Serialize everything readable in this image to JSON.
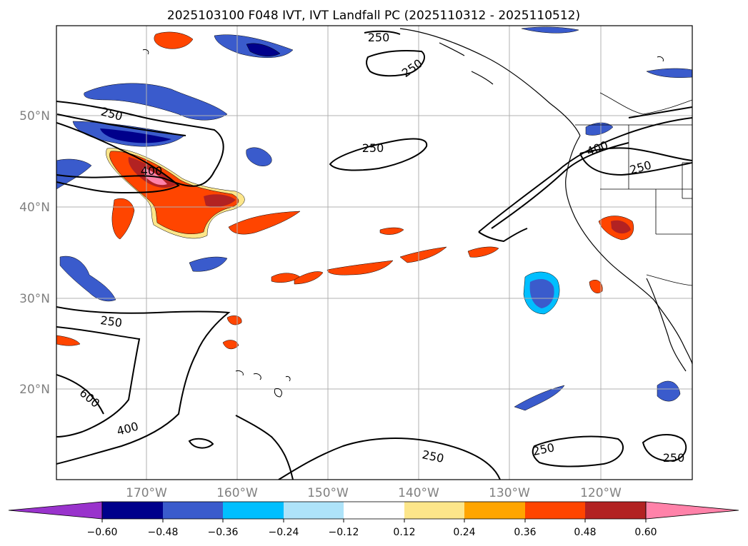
{
  "title": "2025103100 F048 IVT, IVT Landfall PC (2025110312 - 2025110512)",
  "lat_labels": [
    "50°N",
    "40°N",
    "30°N",
    "20°N"
  ],
  "lon_labels": [
    "170°W",
    "160°W",
    "150°W",
    "140°W",
    "130°W",
    "120°W"
  ],
  "colorbar": {
    "colors": [
      "#9933cc",
      "#00008b",
      "#3a5bcc",
      "#00bfff",
      "#aee3f9",
      "#ffffff",
      "#fde68a",
      "#ffa500",
      "#ff4500",
      "#b22222",
      "#ff82a9"
    ],
    "ticks": [
      "−0.60",
      "−0.48",
      "−0.36",
      "−0.24",
      "−0.12",
      "0.12",
      "0.24",
      "0.36",
      "0.48",
      "0.60"
    ]
  },
  "contour_labels": [
    "250",
    "250",
    "250",
    "400",
    "250",
    "400",
    "250",
    "250",
    "600",
    "400",
    "250",
    "250",
    "250"
  ],
  "map_colors": {
    "coast": "#000000",
    "contour": "#000000",
    "grid": "#b0b0b0"
  }
}
